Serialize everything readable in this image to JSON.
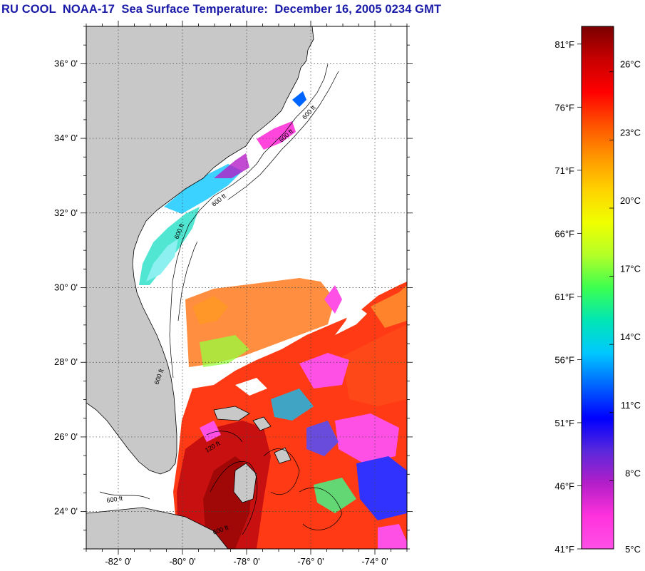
{
  "title": "RU COOL  NOAA-17  Sea Surface Temperature:  December 16, 2005 0234 GMT",
  "map": {
    "lat_labels": [
      "36° 0'",
      "34° 0'",
      "32° 0'",
      "30° 0'",
      "28° 0'",
      "26° 0'",
      "24° 0'"
    ],
    "lon_labels": [
      "-82° 0'",
      "-80° 0'",
      "-78° 0'",
      "-76° 0'",
      "-74° 0'"
    ],
    "lat_values": [
      36,
      34,
      32,
      30,
      28,
      26,
      24
    ],
    "lon_values": [
      -82,
      -80,
      -78,
      -76,
      -74
    ],
    "lat_range": [
      23,
      37
    ],
    "lon_range": [
      -83,
      -73
    ],
    "isobath_labels": [
      "600 ft",
      "600 ft",
      "600 ft",
      "600 ft",
      "600 ft",
      "600 ft",
      "600 ft",
      "120 ft"
    ],
    "colors": {
      "land": "#c8c8c8",
      "cloud": "#ffffff",
      "grid": "#555555"
    }
  },
  "colorbar": {
    "fahrenheit_labels": [
      "81°F",
      "76°F",
      "71°F",
      "66°F",
      "61°F",
      "56°F",
      "51°F",
      "46°F",
      "41°F"
    ],
    "celsius_labels": [
      "26°C",
      "23°C",
      "20°C",
      "17°C",
      "14°C",
      "11°C",
      "8°C",
      "5°C"
    ],
    "range_c": [
      5,
      28
    ],
    "gradient": [
      "#7a0000",
      "#c80000",
      "#ff0000",
      "#ff5000",
      "#ff9600",
      "#ffd200",
      "#f0ff00",
      "#b4ff28",
      "#3cff50",
      "#00e6b4",
      "#00c8ff",
      "#0064ff",
      "#0000ff",
      "#5a28dc",
      "#b41ec8",
      "#ff32dc",
      "#ff50e6"
    ]
  }
}
